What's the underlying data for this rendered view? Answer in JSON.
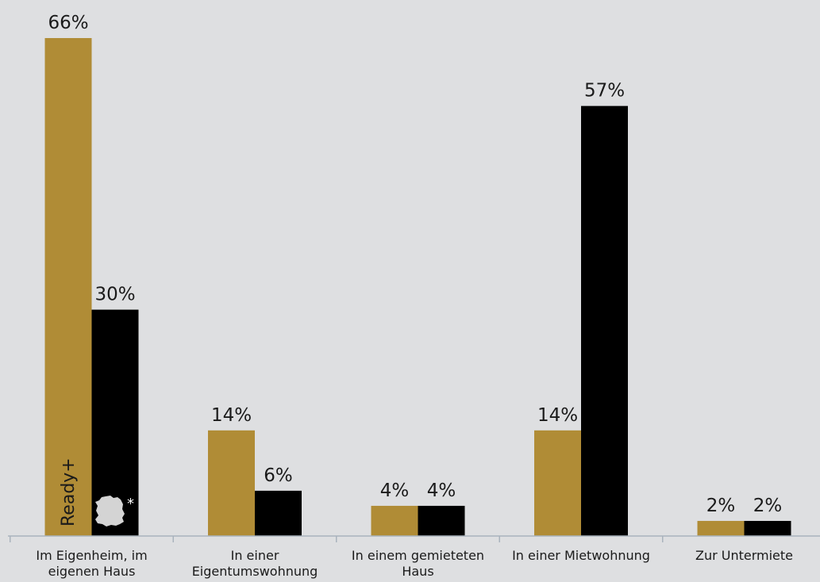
{
  "chart_data": {
    "type": "bar",
    "categories": [
      [
        "Im Eigenheim, im",
        "eigenen Haus"
      ],
      [
        "In einer",
        "Eigentumswohnung"
      ],
      [
        "In einem gemieteten",
        "Haus"
      ],
      [
        "In einer Mietwohnung"
      ],
      [
        "Zur Untermiete"
      ]
    ],
    "series": [
      {
        "name": "Ready+",
        "color": "#b08c36",
        "values": [
          66,
          14,
          4,
          14,
          2
        ],
        "value_labels": [
          "66%",
          "14%",
          "4%",
          "14%",
          "2%"
        ]
      },
      {
        "name": "*",
        "icon": "germany-map-icon",
        "color": "#000000",
        "values": [
          30,
          6,
          4,
          57,
          2
        ],
        "value_labels": [
          "30%",
          "6%",
          "4%",
          "57%",
          "2%"
        ]
      }
    ],
    "ylim": [
      0,
      66
    ],
    "grid": false,
    "legend": "inside-first-bars",
    "axis_color": "#a9b3bd"
  }
}
